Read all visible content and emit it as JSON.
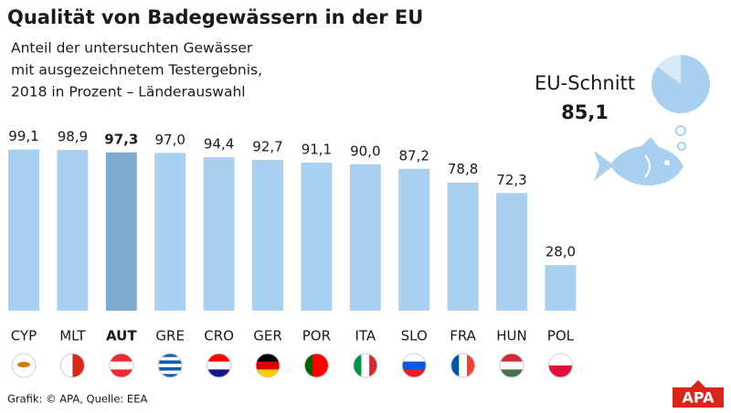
{
  "chart_data": {
    "type": "bar",
    "title": "Qualität von Badegewässern in der EU",
    "subtitle": [
      "Anteil der untersuchten Gewässer",
      "mit ausgezeichnetem Testergebnis,",
      "2018 in Prozent – Länderauswahl"
    ],
    "categories": [
      "CYP",
      "MLT",
      "AUT",
      "GRE",
      "CRO",
      "GER",
      "POR",
      "ITA",
      "SLO",
      "FRA",
      "HUN",
      "POL"
    ],
    "values": [
      99.1,
      98.9,
      97.3,
      97.0,
      94.4,
      92.7,
      91.1,
      90.0,
      87.2,
      78.8,
      72.3,
      28.0
    ],
    "value_labels": [
      "99,1",
      "98,9",
      "97,3",
      "97,0",
      "94,4",
      "92,7",
      "91,1",
      "90,0",
      "87,2",
      "78,8",
      "72,3",
      "28,0"
    ],
    "color": "#a9d0ee",
    "highlight": "AUT",
    "highlight_color": "#80abd0",
    "average": {
      "label": "EU-Schnitt",
      "value": 85.1,
      "value_label": "85,1"
    },
    "source": "Grafik: © APA, Quelle: EEA",
    "logo": "APA"
  }
}
